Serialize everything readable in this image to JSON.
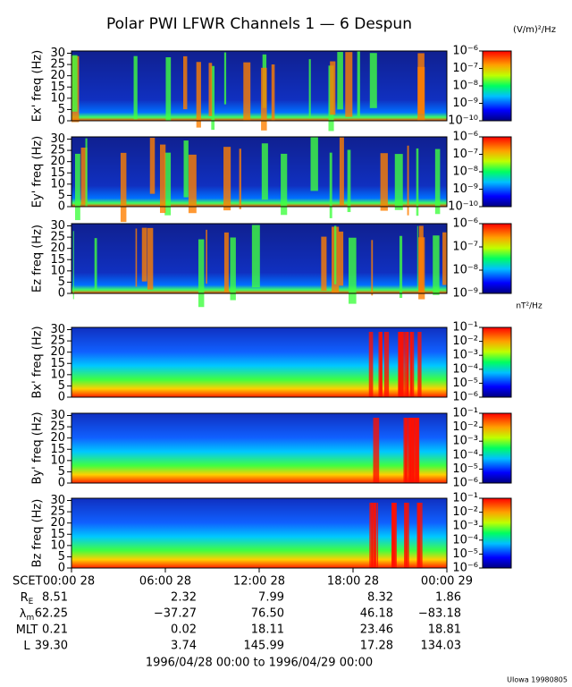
{
  "chart_data": {
    "type": "spectrogram",
    "title": "Polar PWI LFWR Channels 1 — 6 Despun",
    "units": [
      "(V/m)²/Hz",
      "nT²/Hz"
    ],
    "panels": [
      {
        "ylabel": "Ex' freq (Hz)",
        "ylim": [
          0,
          31
        ],
        "yticks": [
          0,
          5,
          10,
          15,
          20,
          25,
          30
        ],
        "log_colorbar": true,
        "clim": [
          1e-10,
          1e-06
        ],
        "cticks": [
          {
            "value": 1e-06,
            "label": "10⁻⁶"
          },
          {
            "value": 1e-07,
            "label": "10⁻⁷"
          },
          {
            "value": 1e-08,
            "label": "10⁻⁸"
          },
          {
            "value": 1e-09,
            "label": "10⁻⁹"
          },
          {
            "value": 1e-10,
            "label": "10⁻¹⁰"
          }
        ]
      },
      {
        "ylabel": "Ey' freq (Hz)",
        "ylim": [
          0,
          31
        ],
        "yticks": [
          0,
          5,
          10,
          15,
          20,
          25,
          30
        ],
        "log_colorbar": true,
        "clim": [
          1e-10,
          1e-06
        ],
        "cticks": [
          {
            "value": 1e-06,
            "label": "10⁻⁶"
          },
          {
            "value": 1e-07,
            "label": "10⁻⁷"
          },
          {
            "value": 1e-08,
            "label": "10⁻⁸"
          },
          {
            "value": 1e-09,
            "label": "10⁻⁹"
          },
          {
            "value": 1e-10,
            "label": "10⁻¹⁰"
          }
        ]
      },
      {
        "ylabel": "Ez freq (Hz)",
        "ylim": [
          0,
          31
        ],
        "yticks": [
          0,
          5,
          10,
          15,
          20,
          25,
          30
        ],
        "log_colorbar": true,
        "clim": [
          1e-09,
          1e-06
        ],
        "cticks": [
          {
            "value": 1e-06,
            "label": "10⁻⁶"
          },
          {
            "value": 1e-07,
            "label": "10⁻⁷"
          },
          {
            "value": 1e-08,
            "label": "10⁻⁸"
          },
          {
            "value": 1e-09,
            "label": "10⁻⁹"
          }
        ]
      },
      {
        "ylabel": "Bx' freq (Hz)",
        "ylim": [
          0,
          31
        ],
        "yticks": [
          0,
          5,
          10,
          15,
          20,
          25,
          30
        ],
        "log_colorbar": true,
        "clim": [
          1e-06,
          0.1
        ],
        "cticks": [
          {
            "value": 0.1,
            "label": "10⁻¹"
          },
          {
            "value": 0.01,
            "label": "10⁻²"
          },
          {
            "value": 0.001,
            "label": "10⁻³"
          },
          {
            "value": 0.0001,
            "label": "10⁻⁴"
          },
          {
            "value": 1e-05,
            "label": "10⁻⁵"
          },
          {
            "value": 1e-06,
            "label": "10⁻⁶"
          }
        ]
      },
      {
        "ylabel": "By' freq (Hz)",
        "ylim": [
          0,
          31
        ],
        "yticks": [
          0,
          5,
          10,
          15,
          20,
          25,
          30
        ],
        "log_colorbar": true,
        "clim": [
          1e-06,
          0.1
        ],
        "cticks": [
          {
            "value": 0.1,
            "label": "10⁻¹"
          },
          {
            "value": 0.01,
            "label": "10⁻²"
          },
          {
            "value": 0.001,
            "label": "10⁻³"
          },
          {
            "value": 0.0001,
            "label": "10⁻⁴"
          },
          {
            "value": 1e-05,
            "label": "10⁻⁵"
          },
          {
            "value": 1e-06,
            "label": "10⁻⁶"
          }
        ]
      },
      {
        "ylabel": "Bz freq (Hz)",
        "ylim": [
          0,
          31
        ],
        "yticks": [
          0,
          5,
          10,
          15,
          20,
          25,
          30
        ],
        "log_colorbar": true,
        "clim": [
          1e-06,
          0.1
        ],
        "cticks": [
          {
            "value": 0.1,
            "label": "10⁻¹"
          },
          {
            "value": 0.01,
            "label": "10⁻²"
          },
          {
            "value": 0.001,
            "label": "10⁻³"
          },
          {
            "value": 0.0001,
            "label": "10⁻⁴"
          },
          {
            "value": 1e-05,
            "label": "10⁻⁵"
          },
          {
            "value": 1e-06,
            "label": "10⁻⁶"
          }
        ]
      }
    ],
    "x_axis_label": "SCET",
    "categories": [
      "00:00 28",
      "06:00 28",
      "12:00 28",
      "18:00 28",
      "00:00 29"
    ],
    "ephemeris": [
      {
        "label": "R",
        "sub": "E",
        "values": [
          "8.51",
          "2.32",
          "7.99",
          "8.32",
          "1.86"
        ]
      },
      {
        "label": "λ",
        "sub": "m",
        "values": [
          "62.25",
          "−37.27",
          "76.50",
          "46.18",
          "−83.18"
        ]
      },
      {
        "label": "MLT",
        "values": [
          "0.21",
          "0.02",
          "18.11",
          "23.46",
          "18.81"
        ]
      },
      {
        "label": "L",
        "values": [
          "39.30",
          "3.74",
          "145.99",
          "17.28",
          "134.03"
        ]
      }
    ],
    "date_range": "1996/04/28 00:00 to 1996/04/29 00:00",
    "footer": "UIowa 19980805"
  }
}
